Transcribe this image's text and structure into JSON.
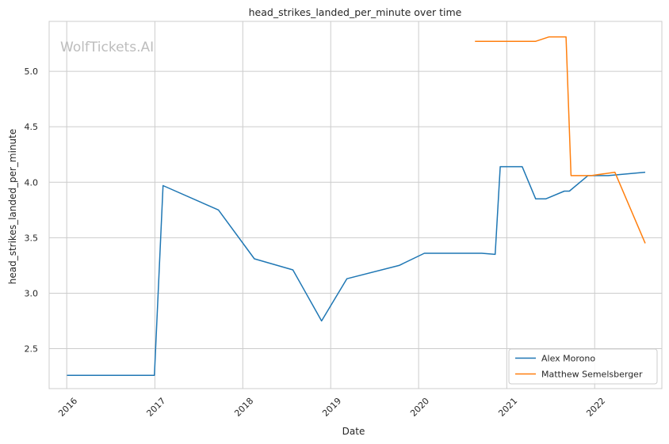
{
  "chart_data": {
    "type": "line",
    "title": "head_strikes_landed_per_minute over time",
    "xlabel": "Date",
    "ylabel": "head_strikes_landed_per_minute",
    "watermark": "WolfTickets.AI",
    "x_ticks": [
      "2016",
      "2017",
      "2018",
      "2019",
      "2020",
      "2021",
      "2022"
    ],
    "y_ticks": [
      "2.5",
      "3.0",
      "3.5",
      "4.0",
      "4.5",
      "5.0"
    ],
    "xlim": [
      "2015-10-20",
      "2022-10-07"
    ],
    "ylim": [
      2.14,
      5.45
    ],
    "grid": true,
    "legend_position": "lower-right",
    "series": [
      {
        "name": "Alex Morono",
        "color": "#1f77b4",
        "points": [
          [
            "2016-01-02",
            2.26
          ],
          [
            "2016-12-30",
            2.26
          ],
          [
            "2017-02-04",
            3.97
          ],
          [
            "2017-09-22",
            3.75
          ],
          [
            "2018-02-18",
            3.31
          ],
          [
            "2018-07-28",
            3.21
          ],
          [
            "2018-11-24",
            2.75
          ],
          [
            "2019-03-09",
            3.13
          ],
          [
            "2019-10-12",
            3.25
          ],
          [
            "2020-01-25",
            3.36
          ],
          [
            "2020-09-19",
            3.36
          ],
          [
            "2020-11-14",
            3.35
          ],
          [
            "2020-12-05",
            4.14
          ],
          [
            "2021-03-06",
            4.14
          ],
          [
            "2021-05-01",
            3.85
          ],
          [
            "2021-06-12",
            3.85
          ],
          [
            "2021-08-28",
            3.92
          ],
          [
            "2021-09-18",
            3.92
          ],
          [
            "2021-12-04",
            4.06
          ],
          [
            "2022-02-26",
            4.06
          ],
          [
            "2022-07-30",
            4.09
          ]
        ]
      },
      {
        "name": "Matthew Semelsberger",
        "color": "#ff7f0e",
        "points": [
          [
            "2020-08-22",
            5.27
          ],
          [
            "2021-05-01",
            5.27
          ],
          [
            "2021-06-26",
            5.31
          ],
          [
            "2021-09-04",
            5.31
          ],
          [
            "2021-09-25",
            4.06
          ],
          [
            "2021-12-18",
            4.06
          ],
          [
            "2022-03-26",
            4.09
          ],
          [
            "2022-07-30",
            3.45
          ]
        ]
      }
    ]
  }
}
